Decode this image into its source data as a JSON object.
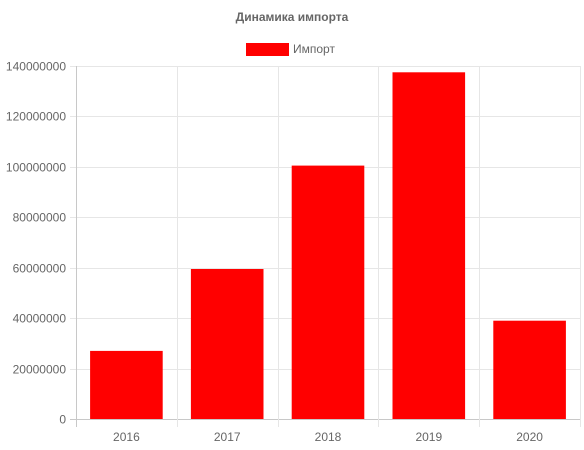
{
  "chart_data": {
    "type": "bar",
    "title": "Динамика импорта",
    "categories": [
      "2016",
      "2017",
      "2018",
      "2019",
      "2020"
    ],
    "series": [
      {
        "name": "Импорт",
        "values": [
          27000000,
          59500000,
          100500000,
          137500000,
          39000000
        ]
      }
    ],
    "y_ticks": [
      "0",
      "20000000",
      "40000000",
      "60000000",
      "80000000",
      "100000000",
      "120000000",
      "140000000"
    ],
    "ylim": [
      0,
      140000000
    ],
    "grid": true,
    "legend_position": "top",
    "colors": {
      "bar": "#ff0000",
      "grid": "#e6e6e6",
      "axis": "#c8c8c8",
      "text": "#666666"
    }
  }
}
